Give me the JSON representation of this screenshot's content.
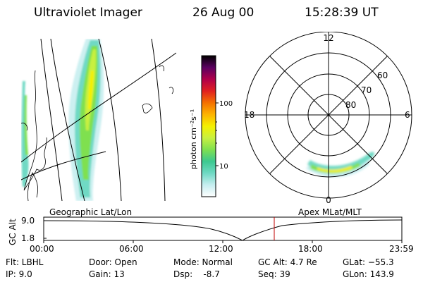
{
  "header": {
    "instrument": "Ultraviolet Imager",
    "date": "26 Aug 00",
    "time": "15:28:39 UT"
  },
  "colorbar": {
    "unit_label": "photon cm⁻²s⁻¹",
    "tick_100": "100",
    "tick_10": "10",
    "colors": [
      "#ffffff",
      "#c6eef0",
      "#6fd9c4",
      "#3cc890",
      "#7fe050",
      "#c8f040",
      "#f4f000",
      "#fdb300",
      "#f47000",
      "#e02020",
      "#b0004a",
      "#5a0060",
      "#000000"
    ]
  },
  "polar_plot": {
    "mlt_labels": {
      "top": "12",
      "left": "18",
      "right": "6",
      "bottom": "0"
    },
    "lat_labels": [
      "60",
      "70",
      "80"
    ]
  },
  "timeline": {
    "left_title": "Geographic Lat/Lon",
    "right_title": "Apex MLat/MLT",
    "y_axis_label": "GC Alt",
    "y_ticks": [
      "9.0",
      "1.8"
    ],
    "x_ticks": [
      "00:00",
      "06:00",
      "12:00",
      "18:00",
      "23:59"
    ],
    "current_time": "15:28:39"
  },
  "footer": {
    "flt": "Flt: LBHL",
    "ip": "IP:  9.0",
    "door": "Door: Open",
    "gain": "Gain: 13",
    "mode": "Mode: Normal",
    "dsp": "Dsp:    -8.7",
    "gc_alt": "GC Alt: 4.7 Re",
    "seq": "Seq: 39",
    "glat": "GLat: −55.3",
    "glon": "GLon: 143.9"
  }
}
